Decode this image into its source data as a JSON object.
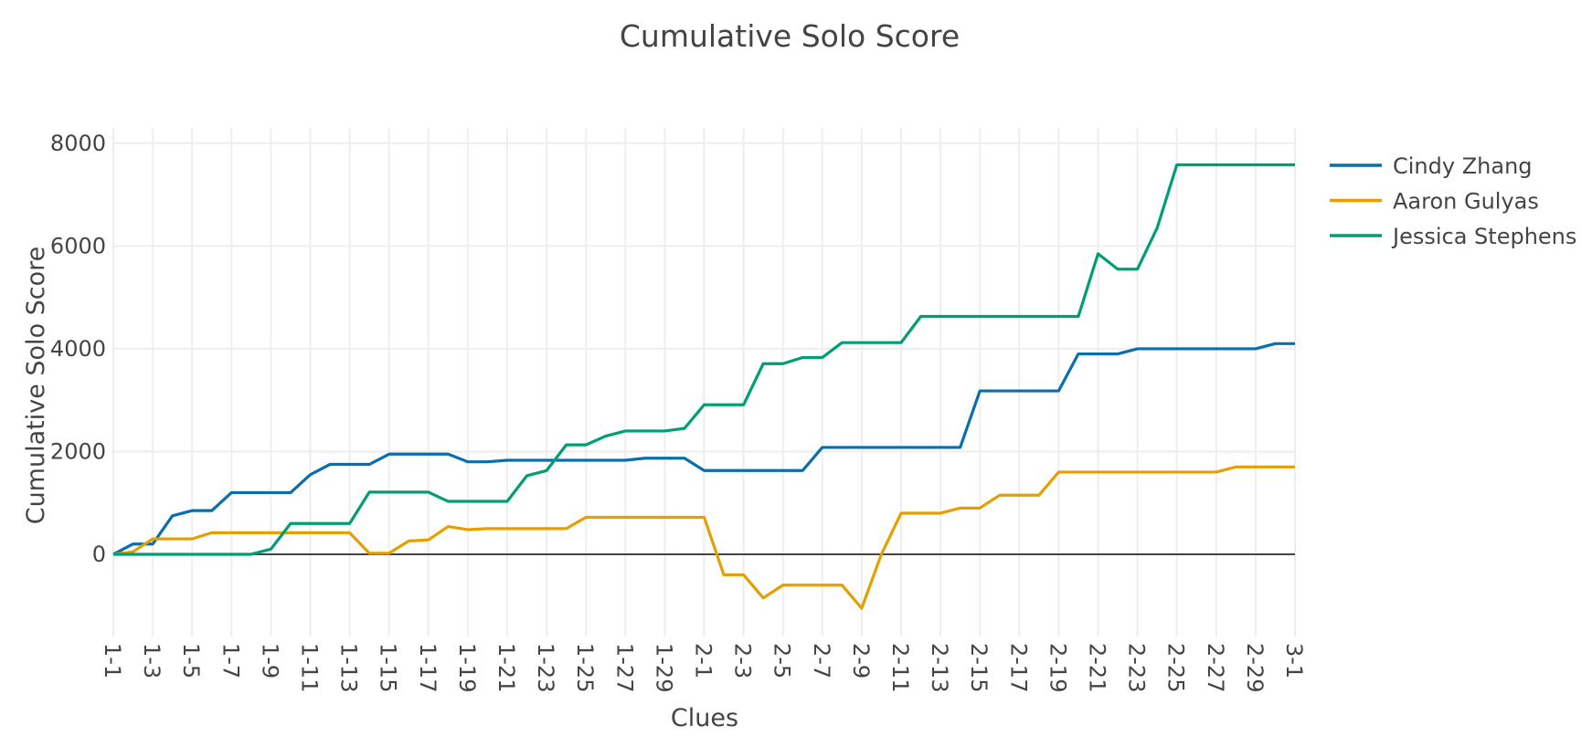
{
  "chart_data": {
    "type": "line",
    "title": "Cumulative Solo Score",
    "xlabel": "Clues",
    "ylabel": "Cumulative Solo Score",
    "categories": [
      "1-1",
      "1-2",
      "1-3",
      "1-4",
      "1-5",
      "1-6",
      "1-7",
      "1-8",
      "1-9",
      "1-10",
      "1-11",
      "1-12",
      "1-13",
      "1-14",
      "1-15",
      "1-16",
      "1-17",
      "1-18",
      "1-19",
      "1-20",
      "1-21",
      "1-22",
      "1-23",
      "1-24",
      "1-25",
      "1-26",
      "1-27",
      "1-28",
      "1-29",
      "1-30",
      "2-1",
      "2-2",
      "2-3",
      "2-4",
      "2-5",
      "2-6",
      "2-7",
      "2-8",
      "2-9",
      "2-10",
      "2-11",
      "2-12",
      "2-13",
      "2-14",
      "2-15",
      "2-16",
      "2-17",
      "2-18",
      "2-19",
      "2-20",
      "2-21",
      "2-22",
      "2-23",
      "2-24",
      "2-25",
      "2-26",
      "2-27",
      "2-28",
      "2-29",
      "2-30",
      "3-1"
    ],
    "x_tick_labels": [
      "1-1",
      "1-3",
      "1-5",
      "1-7",
      "1-9",
      "1-11",
      "1-13",
      "1-15",
      "1-17",
      "1-19",
      "1-21",
      "1-23",
      "1-25",
      "1-27",
      "1-29",
      "2-1",
      "2-3",
      "2-5",
      "2-7",
      "2-9",
      "2-11",
      "2-13",
      "2-15",
      "2-17",
      "2-19",
      "2-21",
      "2-23",
      "2-25",
      "2-27",
      "2-29",
      "3-1"
    ],
    "ylim": [
      -1600,
      8300
    ],
    "y_ticks": [
      0,
      2000,
      4000,
      6000,
      8000
    ],
    "grid": true,
    "legend_position": "right",
    "series": [
      {
        "name": "Cindy Zhang",
        "color": "#0a6ead",
        "values": [
          0,
          200,
          200,
          750,
          850,
          850,
          1200,
          1200,
          1200,
          1200,
          1550,
          1750,
          1750,
          1750,
          1950,
          1950,
          1950,
          1950,
          1800,
          1800,
          1830,
          1830,
          1830,
          1830,
          1830,
          1830,
          1830,
          1870,
          1870,
          1870,
          1630,
          1630,
          1630,
          1630,
          1630,
          1630,
          2080,
          2080,
          2080,
          2080,
          2080,
          2080,
          2080,
          2080,
          3180,
          3180,
          3180,
          3180,
          3180,
          3900,
          3900,
          3900,
          4000,
          4000,
          4000,
          4000,
          4000,
          4000,
          4000,
          4100,
          4100
        ]
      },
      {
        "name": "Aaron Gulyas",
        "color": "#e69f00",
        "values": [
          0,
          50,
          300,
          300,
          300,
          420,
          420,
          420,
          420,
          420,
          420,
          420,
          420,
          20,
          20,
          260,
          280,
          540,
          480,
          500,
          500,
          500,
          500,
          500,
          720,
          720,
          720,
          720,
          720,
          720,
          720,
          -400,
          -400,
          -850,
          -600,
          -600,
          -600,
          -600,
          -1050,
          0,
          800,
          800,
          800,
          900,
          900,
          1150,
          1150,
          1150,
          1600,
          1600,
          1600,
          1600,
          1600,
          1600,
          1600,
          1600,
          1600,
          1700,
          1700,
          1700,
          1700
        ]
      },
      {
        "name": "Jessica Stephens",
        "color": "#009e73",
        "values": [
          0,
          0,
          0,
          0,
          0,
          0,
          0,
          0,
          100,
          600,
          600,
          600,
          600,
          1210,
          1210,
          1210,
          1210,
          1030,
          1030,
          1030,
          1030,
          1530,
          1630,
          2130,
          2130,
          2300,
          2400,
          2400,
          2400,
          2450,
          2910,
          2910,
          2910,
          3710,
          3710,
          3830,
          3830,
          4120,
          4120,
          4120,
          4120,
          4630,
          4630,
          4630,
          4630,
          4630,
          4630,
          4630,
          4630,
          4630,
          5850,
          5550,
          5550,
          6350,
          7580,
          7580,
          7580,
          7580,
          7580,
          7580,
          7580
        ]
      }
    ]
  }
}
